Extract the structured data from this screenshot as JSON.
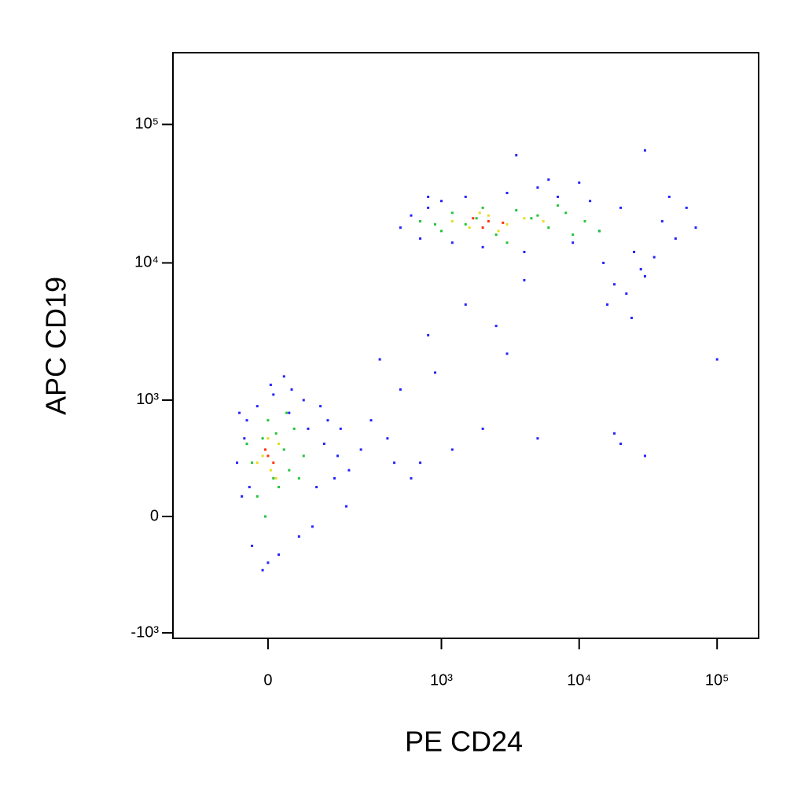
{
  "chart_data": {
    "type": "scatter",
    "xlabel": "PE CD24",
    "ylabel": "APC  CD19",
    "xscale": "biexponential",
    "yscale": "biexponential",
    "xlim": [
      -260,
      200000
    ],
    "ylim": [
      -1100,
      330000
    ],
    "xticks": [
      0,
      {
        "value": 1000,
        "label": "10³"
      },
      {
        "value": 10000,
        "label": "10⁴"
      },
      {
        "value": 100000,
        "label": "10⁵"
      }
    ],
    "yticks": [
      {
        "value": -1000,
        "label": "-10³"
      },
      0,
      {
        "value": 1000,
        "label": "10³"
      },
      {
        "value": 10000,
        "label": "10⁴"
      },
      {
        "value": 100000,
        "label": "10⁵"
      }
    ],
    "series": [
      {
        "color": "#2424ff",
        "x": [
          -60,
          -40,
          -20,
          10,
          40,
          80,
          120,
          160,
          200,
          250,
          -50,
          -30,
          20,
          60,
          100,
          150,
          190,
          -45,
          5,
          70,
          -55,
          0,
          90,
          130,
          -35,
          45,
          110,
          170,
          30,
          -10,
          300,
          400,
          500,
          700,
          900,
          1200,
          2000,
          3000,
          5000,
          20000,
          30000,
          600,
          800,
          1500,
          2500,
          4000,
          350,
          450,
          100000,
          18000,
          500,
          600,
          700,
          800,
          1000,
          1200,
          1500,
          2000,
          3000,
          4000,
          5000,
          7000,
          9000,
          12000,
          15000,
          20000,
          25000,
          30000,
          40000,
          50000,
          60000,
          70000,
          18000,
          22000,
          28000,
          35000,
          16000,
          24000,
          800,
          3500,
          6000,
          10000,
          45000,
          14000,
          30000
        ],
        "y": [
          300,
          700,
          900,
          1100,
          800,
          600,
          450,
          350,
          250,
          400,
          100,
          -150,
          -200,
          -100,
          150,
          200,
          50,
          500,
          1300,
          1000,
          800,
          -250,
          -50,
          700,
          150,
          1200,
          900,
          600,
          1500,
          -300,
          700,
          500,
          1200,
          300,
          1600,
          400,
          600,
          2200,
          500,
          450,
          350,
          200,
          3000,
          5000,
          3500,
          7500,
          2000,
          300,
          2000,
          550,
          18000,
          22000,
          15000,
          25000,
          28000,
          14000,
          30000,
          13000,
          32000,
          12000,
          35000,
          30000,
          14000,
          28000,
          10000,
          25000,
          12000,
          8000,
          20000,
          15000,
          25000,
          18000,
          7000,
          6000,
          9000,
          11000,
          5000,
          4000,
          30000,
          60000,
          40000,
          38000,
          30000,
          17000,
          65000
        ]
      },
      {
        "color": "#22c43a",
        "x": [
          -30,
          -10,
          10,
          30,
          50,
          -20,
          0,
          20,
          40,
          70,
          -40,
          15,
          60,
          -5,
          35,
          700,
          1000,
          1200,
          1500,
          2500,
          3500,
          4500,
          6000,
          8000,
          11000,
          14000,
          900,
          2000,
          5000,
          9000,
          3000,
          7000,
          1800
        ],
        "y": [
          300,
          500,
          200,
          400,
          600,
          100,
          700,
          150,
          250,
          350,
          450,
          550,
          200,
          0,
          800,
          20000,
          17000,
          23000,
          19000,
          16000,
          24000,
          21000,
          18000,
          23000,
          20000,
          17000,
          19000,
          25000,
          22000,
          16000,
          14000,
          26000,
          21000
        ]
      },
      {
        "color": "#e6dc1e",
        "x": [
          -10,
          5,
          20,
          -20,
          0,
          15,
          1200,
          1600,
          2200,
          3000,
          4000,
          5500,
          1900,
          2600
        ],
        "y": [
          350,
          250,
          450,
          300,
          500,
          200,
          20000,
          18000,
          22000,
          19000,
          21000,
          20000,
          23000,
          17000
        ]
      },
      {
        "color": "#ff3010",
        "x": [
          0,
          10,
          -5,
          1700,
          2200,
          2800,
          2000
        ],
        "y": [
          350,
          300,
          400,
          21000,
          20000,
          19500,
          18000
        ]
      }
    ]
  }
}
